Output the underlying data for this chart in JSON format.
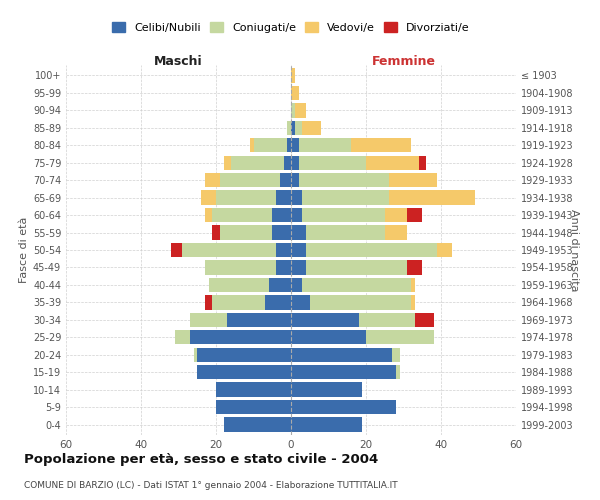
{
  "age_groups": [
    "0-4",
    "5-9",
    "10-14",
    "15-19",
    "20-24",
    "25-29",
    "30-34",
    "35-39",
    "40-44",
    "45-49",
    "50-54",
    "55-59",
    "60-64",
    "65-69",
    "70-74",
    "75-79",
    "80-84",
    "85-89",
    "90-94",
    "95-99",
    "100+"
  ],
  "birth_years": [
    "1999-2003",
    "1994-1998",
    "1989-1993",
    "1984-1988",
    "1979-1983",
    "1974-1978",
    "1969-1973",
    "1964-1968",
    "1959-1963",
    "1954-1958",
    "1949-1953",
    "1944-1948",
    "1939-1943",
    "1934-1938",
    "1929-1933",
    "1924-1928",
    "1919-1923",
    "1914-1918",
    "1909-1913",
    "1904-1908",
    "≤ 1903"
  ],
  "colors": {
    "celibi": "#3a6cac",
    "coniugati": "#c5d8a0",
    "vedovi": "#f5c96a",
    "divorziati": "#cc2222"
  },
  "maschi": {
    "celibi": [
      18,
      20,
      20,
      25,
      25,
      27,
      17,
      7,
      6,
      4,
      4,
      5,
      5,
      4,
      3,
      2,
      1,
      0,
      0,
      0,
      0
    ],
    "coniugati": [
      0,
      0,
      0,
      0,
      1,
      4,
      10,
      14,
      16,
      19,
      25,
      14,
      16,
      16,
      16,
      14,
      9,
      1,
      0,
      0,
      0
    ],
    "vedovi": [
      0,
      0,
      0,
      0,
      0,
      0,
      0,
      0,
      0,
      0,
      0,
      0,
      2,
      4,
      4,
      2,
      1,
      0,
      0,
      0,
      0
    ],
    "divorziati": [
      0,
      0,
      0,
      0,
      0,
      0,
      0,
      2,
      0,
      0,
      3,
      2,
      0,
      0,
      0,
      0,
      0,
      0,
      0,
      0,
      0
    ]
  },
  "femmine": {
    "celibi": [
      19,
      28,
      19,
      28,
      27,
      20,
      18,
      5,
      3,
      4,
      4,
      4,
      3,
      3,
      2,
      2,
      2,
      1,
      0,
      0,
      0
    ],
    "coniugati": [
      0,
      0,
      0,
      1,
      2,
      18,
      15,
      27,
      29,
      27,
      35,
      21,
      22,
      23,
      24,
      18,
      14,
      2,
      1,
      0,
      0
    ],
    "vedovi": [
      0,
      0,
      0,
      0,
      0,
      0,
      0,
      1,
      1,
      0,
      4,
      6,
      6,
      23,
      13,
      14,
      16,
      5,
      3,
      2,
      1
    ],
    "divorziati": [
      0,
      0,
      0,
      0,
      0,
      0,
      5,
      0,
      0,
      4,
      0,
      0,
      4,
      0,
      0,
      2,
      0,
      0,
      0,
      0,
      0
    ]
  },
  "xlim": 60,
  "title": "Popolazione per età, sesso e stato civile - 2004",
  "subtitle": "COMUNE DI BARZIO (LC) - Dati ISTAT 1° gennaio 2004 - Elaborazione TUTTITALIA.IT",
  "ylabel_left": "Fasce di età",
  "ylabel_right": "Anni di nascita",
  "xlabel_left": "Maschi",
  "xlabel_right": "Femmine",
  "background": "#ffffff",
  "grid_color": "#cccccc"
}
